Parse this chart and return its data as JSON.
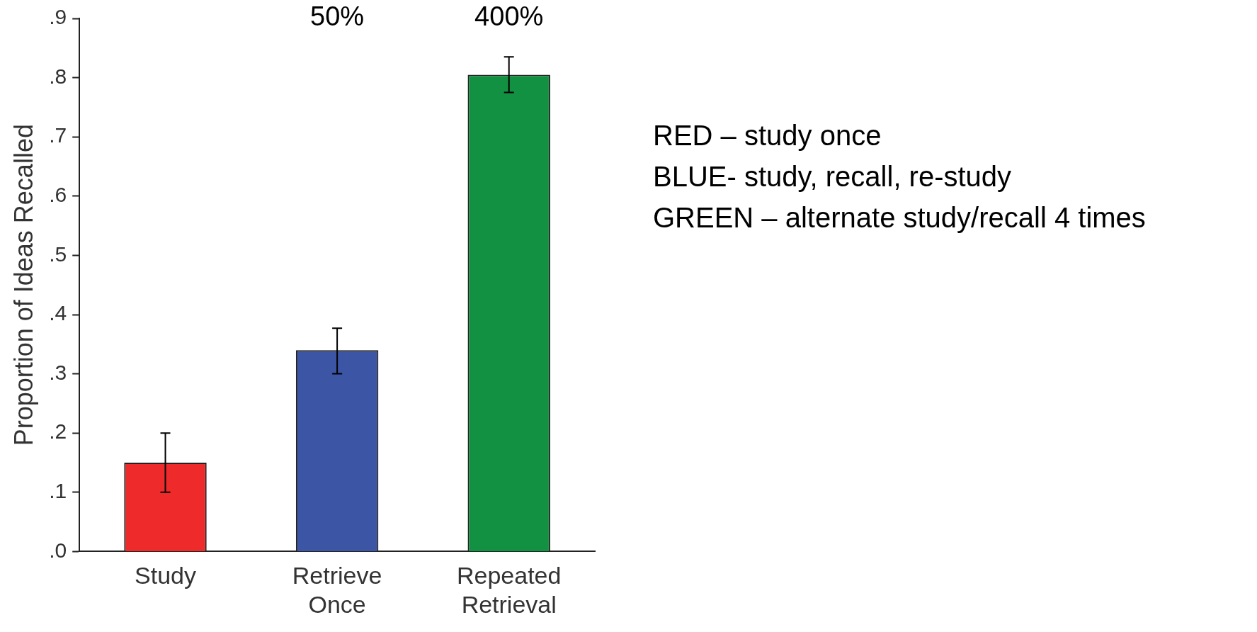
{
  "chart_data": {
    "type": "bar",
    "ylabel": "Proportion of Ideas Recalled",
    "categories": [
      "Study",
      "Retrieve Once",
      "Repeated Retrieval"
    ],
    "values": [
      0.15,
      0.34,
      0.805
    ],
    "colors": [
      "#ee2a2a",
      "#3c55a5",
      "#139142"
    ],
    "errors": [
      0.05,
      [
        0.3,
        0.377
      ],
      0.03
    ],
    "ylim": [
      0,
      0.9
    ],
    "yticks": [
      {
        "value": 0,
        "label": ".0"
      },
      {
        "value": 0.1,
        "label": ".1"
      },
      {
        "value": 0.2,
        "label": ".2"
      },
      {
        "value": 0.3,
        "label": ".3"
      },
      {
        "value": 0.4,
        "label": ".4"
      },
      {
        "value": 0.5,
        "label": ".5"
      },
      {
        "value": 0.6,
        "label": ".6"
      },
      {
        "value": 0.7,
        "label": ".7"
      },
      {
        "value": 0.8,
        "label": ".8"
      },
      {
        "value": 0.9,
        "label": ".9"
      }
    ],
    "grid": false,
    "legend": false,
    "annotations": [
      "50%",
      "400%",
      "RED – study once",
      "BLUE- study, recall, re-study",
      "GREEN – alternate study/recall 4 times"
    ]
  }
}
